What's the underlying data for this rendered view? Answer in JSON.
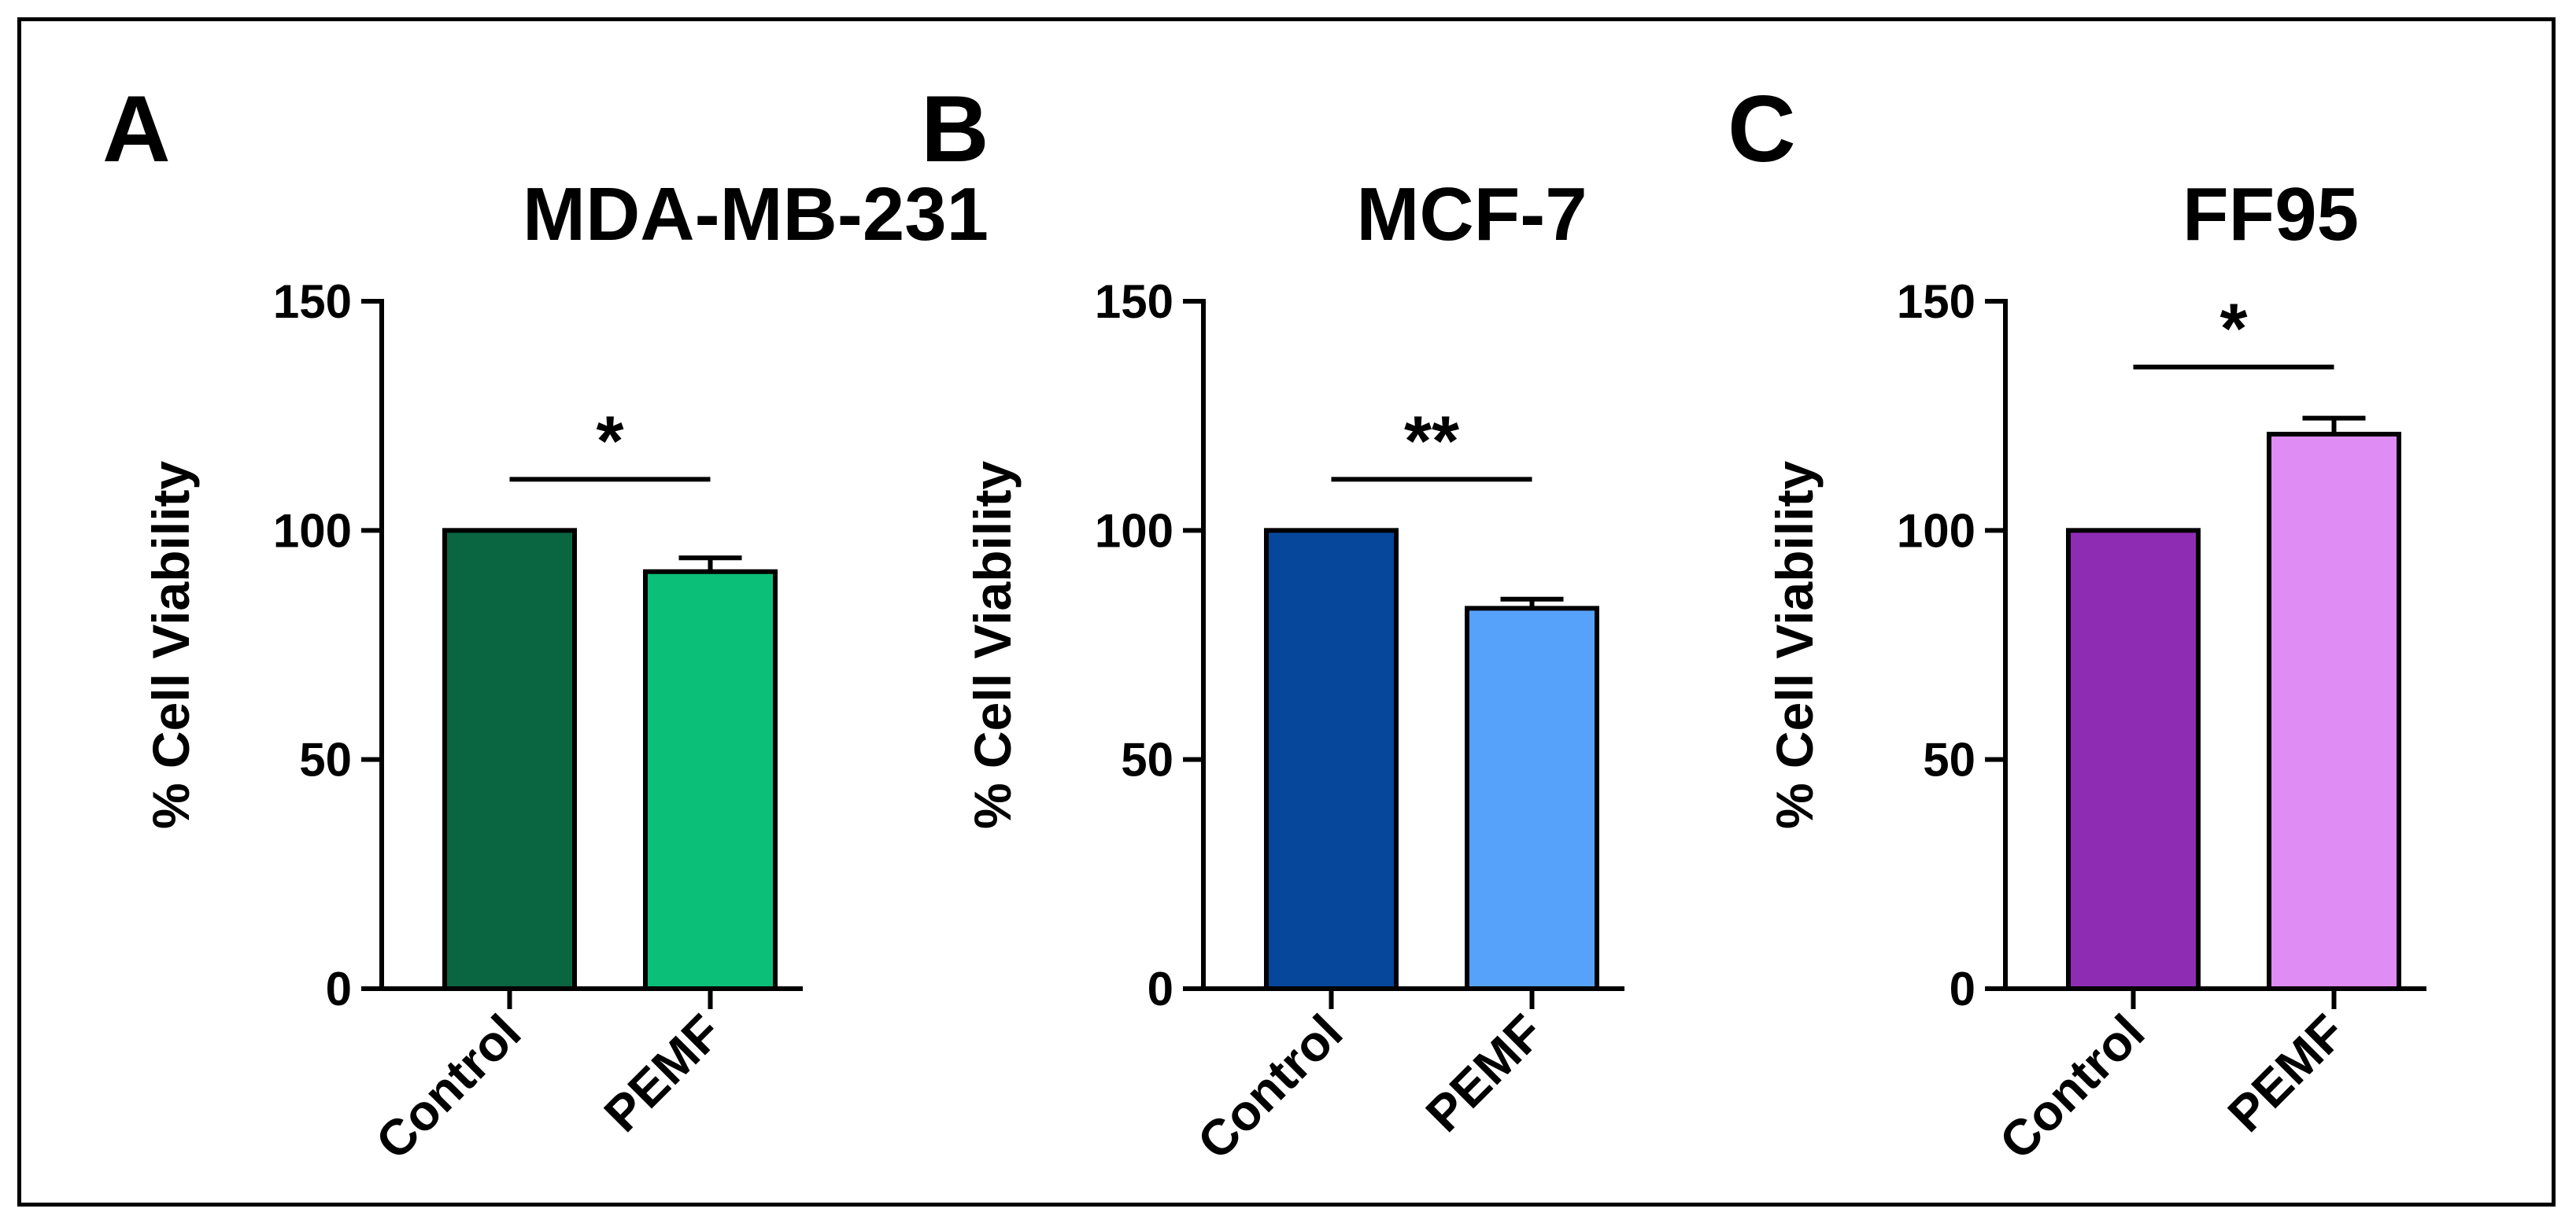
{
  "chart_data": [
    {
      "type": "bar",
      "panel": "A",
      "title": "MDA-MB-231",
      "ylabel": "% Cell Viability",
      "xlabel": "",
      "ylim": [
        0,
        150
      ],
      "yticks": [
        0,
        50,
        100,
        150
      ],
      "categories": [
        "Control",
        "PEMF"
      ],
      "values": [
        100,
        91
      ],
      "errors": [
        0,
        3
      ],
      "colors": [
        "#0a6541",
        "#0bbf79"
      ],
      "significance": "*"
    },
    {
      "type": "bar",
      "panel": "B",
      "title": "MCF-7",
      "ylabel": "% Cell Viability",
      "xlabel": "",
      "ylim": [
        0,
        150
      ],
      "yticks": [
        0,
        50,
        100,
        150
      ],
      "categories": [
        "Control",
        "PEMF"
      ],
      "values": [
        100,
        83
      ],
      "errors": [
        0,
        2
      ],
      "colors": [
        "#06479b",
        "#56a2fb"
      ],
      "significance": "**"
    },
    {
      "type": "bar",
      "panel": "C",
      "title": "FF95",
      "ylabel": "% Cell Viability",
      "xlabel": "",
      "ylim": [
        0,
        150
      ],
      "yticks": [
        0,
        50,
        100,
        150
      ],
      "categories": [
        "Control",
        "PEMF"
      ],
      "values": [
        100,
        121
      ],
      "errors": [
        0,
        3.5
      ],
      "colors": [
        "#8e2db3",
        "#df8cf4"
      ],
      "significance": "*"
    }
  ]
}
